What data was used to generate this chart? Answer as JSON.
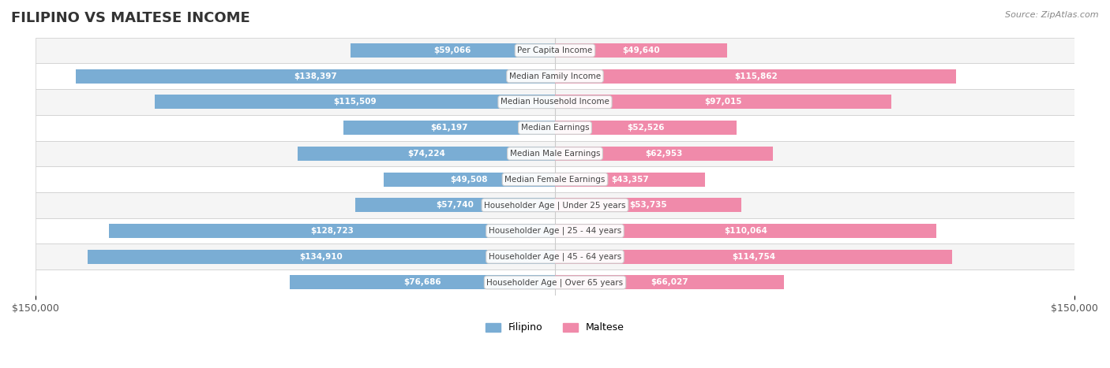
{
  "title": "FILIPINO VS MALTESE INCOME",
  "source": "Source: ZipAtlas.com",
  "categories": [
    "Per Capita Income",
    "Median Family Income",
    "Median Household Income",
    "Median Earnings",
    "Median Male Earnings",
    "Median Female Earnings",
    "Householder Age | Under 25 years",
    "Householder Age | 25 - 44 years",
    "Householder Age | 45 - 64 years",
    "Householder Age | Over 65 years"
  ],
  "filipino_values": [
    59066,
    138397,
    115509,
    61197,
    74224,
    49508,
    57740,
    128723,
    134910,
    76686
  ],
  "maltese_values": [
    49640,
    115862,
    97015,
    52526,
    62953,
    43357,
    53735,
    110064,
    114754,
    66027
  ],
  "filipino_labels": [
    "$59,066",
    "$138,397",
    "$115,509",
    "$61,197",
    "$74,224",
    "$49,508",
    "$57,740",
    "$128,723",
    "$134,910",
    "$76,686"
  ],
  "maltese_labels": [
    "$49,640",
    "$115,862",
    "$97,015",
    "$52,526",
    "$62,953",
    "$43,357",
    "$53,735",
    "$110,064",
    "$114,754",
    "$66,027"
  ],
  "max_value": 150000,
  "filipino_color": "#7aadd4",
  "maltese_color": "#f08aaa",
  "filipino_color_dark": "#4a86c8",
  "maltese_color_dark": "#e85585",
  "bar_height": 0.55,
  "row_bg_even": "#f5f5f5",
  "row_bg_odd": "#ffffff",
  "label_color_outside": "#555555",
  "label_color_inside": "#ffffff",
  "category_label_color": "#555555",
  "xlim": 150000,
  "legend_labels": [
    "Filipino",
    "Maltese"
  ]
}
